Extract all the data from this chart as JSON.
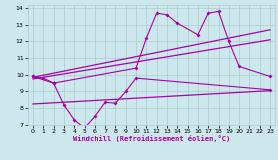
{
  "background_color": "#cce8ec",
  "grid_color": "#aacccc",
  "line_color": "#aa00aa",
  "xlabel": "Windchill (Refroidissement éolien,°C)",
  "xlim": [
    -0.5,
    23.5
  ],
  "ylim": [
    7,
    14.2
  ],
  "xticks": [
    0,
    1,
    2,
    3,
    4,
    5,
    6,
    7,
    8,
    9,
    10,
    11,
    12,
    13,
    14,
    15,
    16,
    17,
    18,
    19,
    20,
    21,
    22,
    23
  ],
  "yticks": [
    7,
    8,
    9,
    10,
    11,
    12,
    13,
    14
  ],
  "top_jagged_x": [
    0,
    1,
    2,
    10,
    11,
    12,
    13,
    14,
    16,
    17,
    18,
    19,
    20,
    23
  ],
  "top_jagged_y": [
    9.9,
    9.8,
    9.5,
    10.4,
    12.2,
    13.7,
    13.6,
    13.1,
    12.4,
    13.7,
    13.8,
    12.0,
    10.5,
    9.9
  ],
  "bot_jagged_x": [
    0,
    2,
    3,
    4,
    5,
    6,
    7,
    8,
    9,
    10,
    23
  ],
  "bot_jagged_y": [
    9.9,
    9.5,
    8.2,
    7.3,
    6.8,
    7.5,
    8.35,
    8.3,
    9.0,
    9.8,
    9.1
  ],
  "trend1_x": [
    0,
    23
  ],
  "trend1_y": [
    9.85,
    12.7
  ],
  "trend2_x": [
    0,
    23
  ],
  "trend2_y": [
    9.75,
    12.1
  ],
  "trend3_x": [
    0,
    23
  ],
  "trend3_y": [
    8.25,
    9.05
  ]
}
